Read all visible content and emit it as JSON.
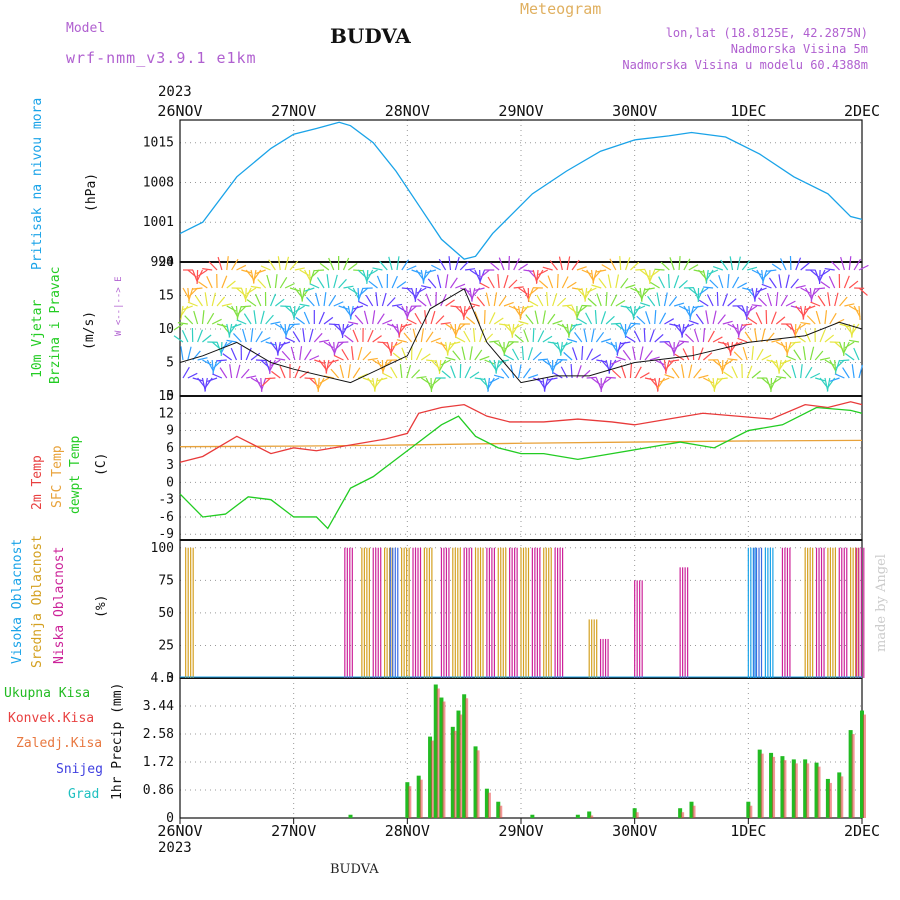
{
  "header": {
    "model_label": "Model",
    "model_value": "wrf-nmm_v3.9.1 e1km",
    "title": "BUDVA",
    "meteogram": "Meteogram",
    "lonlat": "lon,lat (18.8125E, 42.2875N)",
    "elev": "Nadmorska Visina 5m",
    "elev_model": "Nadmorska Visina u modelu 60.4388m",
    "year": "2023",
    "footer": "BUDVA",
    "credit": "made by Angel"
  },
  "colors": {
    "pressure": "#1aa3e8",
    "t2m": "#e83a3a",
    "sfc": "#e8a23a",
    "dewpt": "#22cc22",
    "total_precip": "#22bb22",
    "conv_precip": "#e84040",
    "high_cloud": "#1aa3e8",
    "mid_cloud": "#d4a020",
    "low_cloud": "#cc2299"
  },
  "x_ticks": [
    "26NOV",
    "27NOV",
    "28NOV",
    "29NOV",
    "30NOV",
    "1DEC",
    "2DEC"
  ],
  "panels": {
    "pressure": {
      "label1": "Pritisak na nivou mora",
      "unit": "(hPa)",
      "ticks": [
        "1015",
        "1008",
        "1001",
        "994"
      ]
    },
    "wind": {
      "label1": "10m Vjetar",
      "label2": "Brzina i Pravac",
      "unit": "(m/s)",
      "ticks": [
        "20",
        "15",
        "10",
        "5",
        "0"
      ],
      "compass": "W <--|--> E"
    },
    "temp": {
      "label1": "2m Temp",
      "label2": "SFC Temp",
      "label3": "dewpt Temp",
      "unit": "(C)",
      "ticks": [
        "15",
        "12",
        "9",
        "6",
        "3",
        "0",
        "-3",
        "-6",
        "-9"
      ]
    },
    "cloud": {
      "label1": "Visoka Oblacnost",
      "label2": "Srednja Oblacnost",
      "label3": "Niska Oblacnost",
      "unit": "(%)",
      "ticks": [
        "100",
        "75",
        "50",
        "25",
        "0"
      ]
    },
    "precip": {
      "label1": "Ukupna Kisa",
      "label2": "Konvek.Kisa",
      "label3": "Zaledj.Kisa",
      "label4": "Snijeg",
      "label5": "Grad",
      "unit": "1hr Precip (mm)",
      "ticks": [
        "4.3",
        "3.44",
        "2.58",
        "1.72",
        "0.86",
        "0"
      ]
    }
  },
  "chart_data": [
    {
      "type": "line",
      "name": "pressure",
      "ylim": [
        994,
        1019
      ],
      "x": [
        0,
        0.2,
        0.5,
        0.8,
        1.0,
        1.2,
        1.4,
        1.5,
        1.7,
        1.9,
        2.1,
        2.3,
        2.5,
        2.6,
        2.75,
        2.9,
        3.1,
        3.4,
        3.7,
        4.0,
        4.3,
        4.5,
        4.8,
        5.1,
        5.4,
        5.7,
        5.9,
        6.0
      ],
      "y": [
        999,
        1001,
        1009,
        1014,
        1016.5,
        1017.5,
        1018.6,
        1018,
        1015,
        1010,
        1004,
        998,
        994.5,
        995,
        999,
        1002,
        1006,
        1010,
        1013.5,
        1015.5,
        1016.2,
        1016.8,
        1016,
        1013,
        1009,
        1006,
        1002,
        1001.5
      ]
    },
    {
      "type": "line",
      "name": "2m temp",
      "ylim": [
        -10,
        15
      ],
      "x": [
        0,
        0.2,
        0.5,
        0.8,
        1.0,
        1.2,
        1.5,
        1.8,
        2.0,
        2.1,
        2.3,
        2.5,
        2.7,
        2.9,
        3.2,
        3.5,
        3.8,
        4.0,
        4.3,
        4.6,
        4.9,
        5.2,
        5.5,
        5.7,
        5.9,
        6.0
      ],
      "y": [
        3.5,
        4.5,
        8,
        5,
        6,
        5.5,
        6.5,
        7.5,
        8.5,
        12,
        13,
        13.5,
        11.5,
        10.5,
        10.5,
        11,
        10.5,
        10,
        11,
        12,
        11.5,
        11,
        13.5,
        13,
        14,
        13.5
      ]
    },
    {
      "type": "line",
      "name": "sfc temp",
      "ylim": [
        -10,
        15
      ],
      "x": [
        0,
        1,
        2,
        3,
        4,
        5,
        6
      ],
      "y": [
        6.2,
        6.3,
        6.5,
        6.8,
        7.0,
        7.2,
        7.3
      ]
    },
    {
      "type": "line",
      "name": "dewpt temp",
      "ylim": [
        -10,
        15
      ],
      "x": [
        0,
        0.2,
        0.4,
        0.6,
        0.8,
        1.0,
        1.2,
        1.3,
        1.5,
        1.7,
        1.9,
        2.1,
        2.3,
        2.45,
        2.6,
        2.8,
        3.0,
        3.2,
        3.5,
        3.8,
        4.1,
        4.4,
        4.7,
        5.0,
        5.3,
        5.6,
        5.9,
        6.0
      ],
      "y": [
        -2,
        -6,
        -5.5,
        -2.5,
        -3,
        -6,
        -6,
        -8,
        -1,
        1,
        4,
        7,
        10,
        11.5,
        8,
        6,
        5,
        5,
        4,
        5,
        6,
        7,
        6,
        9,
        10,
        13,
        12.5,
        12
      ]
    },
    {
      "type": "bar",
      "name": "total precip",
      "ylim": [
        0,
        4.3
      ],
      "x": [
        1.5,
        2.0,
        2.1,
        2.2,
        2.25,
        2.3,
        2.4,
        2.45,
        2.5,
        2.6,
        2.7,
        2.8,
        3.1,
        3.5,
        3.6,
        4.0,
        4.4,
        4.5,
        5.0,
        5.1,
        5.2,
        5.3,
        5.4,
        5.5,
        5.6,
        5.7,
        5.8,
        5.9,
        6.0
      ],
      "y": [
        0.1,
        1.1,
        1.3,
        2.5,
        4.1,
        3.7,
        2.8,
        3.3,
        3.8,
        2.2,
        0.9,
        0.5,
        0.1,
        0.1,
        0.2,
        0.3,
        0.3,
        0.5,
        0.5,
        2.1,
        2.0,
        1.9,
        1.8,
        1.8,
        1.7,
        1.2,
        1.4,
        2.7,
        3.3
      ]
    }
  ]
}
